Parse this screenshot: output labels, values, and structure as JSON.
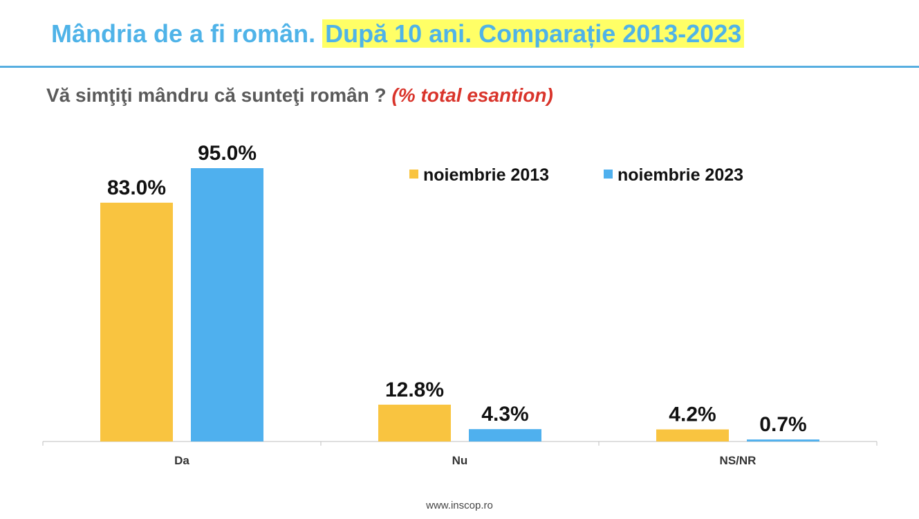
{
  "header": {
    "title_part1": "Mândria de a fi român.",
    "title_part2": "După 10 ani. Comparație 2013-2023",
    "question": "Vă simţiţi mândru că sunteţi român ?",
    "question_note": "(% total esantion)"
  },
  "footer": {
    "url": "www.inscop.ro"
  },
  "colors": {
    "series_2013": "#f9c440",
    "series_2023": "#4fb0ee",
    "title": "#4fb3e8",
    "highlight": "#ffff66",
    "note": "#d9342b"
  },
  "chart_data": {
    "type": "bar",
    "categories": [
      "Da",
      "Nu",
      "NS/NR"
    ],
    "series": [
      {
        "name": "noiembrie 2013",
        "values": [
          83.0,
          12.8,
          4.2
        ],
        "labels": [
          "83.0%",
          "12.8%",
          "4.2%"
        ],
        "color": "#f9c440"
      },
      {
        "name": "noiembrie 2023",
        "values": [
          95.0,
          4.3,
          0.7
        ],
        "labels": [
          "95.0%",
          "4.3%",
          "0.7%"
        ],
        "color": "#4fb0ee"
      }
    ],
    "ylim": [
      0,
      100
    ],
    "grid": false,
    "legend": "top-right"
  }
}
